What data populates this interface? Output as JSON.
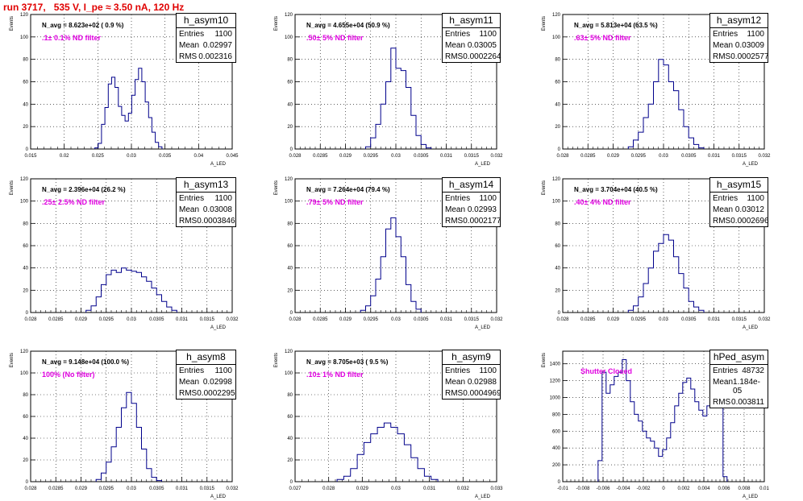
{
  "run_title": "run 3717,   535 V, I_pe ≈ 3.50 nA, 120 Hz",
  "colors": {
    "title": "#e00000",
    "filter_label": "#e000e0",
    "histogram": "#00008b"
  },
  "chart_data": [
    {
      "type": "bar",
      "stats_name": "h_asym10",
      "entries": "1100",
      "mean": "0.02997",
      "rms": "0.002316",
      "n_avg": "N_avg = 8.623e+02 ( 0.9 %)",
      "filter": ".1± 0.1% ND filter",
      "xlabel": "A_LED",
      "ylabel": "Events",
      "xlim": [
        0.015,
        0.045
      ],
      "ylim": [
        0,
        120
      ],
      "xticks": [
        "0.015",
        "0.02",
        "0.025",
        "0.03",
        "0.035",
        "0.04",
        "0.045"
      ],
      "xtick_values": [
        0.015,
        0.02,
        0.025,
        0.03,
        0.035,
        0.04,
        0.045
      ],
      "yticks": [
        0,
        20,
        40,
        60,
        80,
        100,
        120
      ],
      "grid": true,
      "bins": [
        [
          0.0248,
          1
        ],
        [
          0.0253,
          5
        ],
        [
          0.0258,
          22
        ],
        [
          0.0263,
          37
        ],
        [
          0.0268,
          58
        ],
        [
          0.0273,
          64
        ],
        [
          0.0278,
          55
        ],
        [
          0.0283,
          38
        ],
        [
          0.0288,
          30
        ],
        [
          0.0293,
          25
        ],
        [
          0.0298,
          32
        ],
        [
          0.0303,
          48
        ],
        [
          0.0308,
          62
        ],
        [
          0.0313,
          72
        ],
        [
          0.0318,
          60
        ],
        [
          0.0323,
          42
        ],
        [
          0.0328,
          28
        ],
        [
          0.0333,
          15
        ],
        [
          0.0338,
          6
        ],
        [
          0.0343,
          2
        ]
      ]
    },
    {
      "type": "bar",
      "stats_name": "h_asym11",
      "entries": "1100",
      "mean": "0.03005",
      "rms": "0.0002264",
      "n_avg": "N_avg = 4.655e+04 (50.9 %)",
      "filter": ".50± 5% ND filter",
      "xlabel": "A_LED",
      "ylabel": "Events",
      "xlim": [
        0.028,
        0.032
      ],
      "ylim": [
        0,
        120
      ],
      "xticks": [
        "0.028",
        "0.0285",
        "0.029",
        "0.0295",
        "0.03",
        "0.0305",
        "0.031",
        "0.0315",
        "0.032"
      ],
      "xtick_values": [
        0.028,
        0.0285,
        0.029,
        0.0295,
        0.03,
        0.0305,
        0.031,
        0.0315,
        0.032
      ],
      "yticks": [
        0,
        20,
        40,
        60,
        80,
        100,
        120
      ],
      "grid": true,
      "bins": [
        [
          0.02945,
          2
        ],
        [
          0.02955,
          10
        ],
        [
          0.02965,
          22
        ],
        [
          0.02975,
          40
        ],
        [
          0.02985,
          60
        ],
        [
          0.02995,
          90
        ],
        [
          0.03005,
          72
        ],
        [
          0.03015,
          70
        ],
        [
          0.03025,
          55
        ],
        [
          0.03035,
          30
        ],
        [
          0.03045,
          12
        ],
        [
          0.03055,
          4
        ],
        [
          0.03065,
          1
        ]
      ]
    },
    {
      "type": "bar",
      "stats_name": "h_asym12",
      "entries": "1100",
      "mean": "0.03009",
      "rms": "0.0002577",
      "n_avg": "N_avg = 5.813e+04 (63.5 %)",
      "filter": ".63± 5% ND filter",
      "xlabel": "A_LED",
      "ylabel": "Events",
      "xlim": [
        0.028,
        0.032
      ],
      "ylim": [
        0,
        120
      ],
      "xticks": [
        "0.028",
        "0.0285",
        "0.029",
        "0.0295",
        "0.03",
        "0.0305",
        "0.031",
        "0.0315",
        "0.032"
      ],
      "xtick_values": [
        0.028,
        0.0285,
        0.029,
        0.0295,
        0.03,
        0.0305,
        0.031,
        0.0315,
        0.032
      ],
      "yticks": [
        0,
        20,
        40,
        60,
        80,
        100,
        120
      ],
      "grid": true,
      "bins": [
        [
          0.02935,
          2
        ],
        [
          0.02945,
          8
        ],
        [
          0.02955,
          15
        ],
        [
          0.02965,
          28
        ],
        [
          0.02975,
          40
        ],
        [
          0.02985,
          60
        ],
        [
          0.02995,
          80
        ],
        [
          0.03005,
          75
        ],
        [
          0.03015,
          60
        ],
        [
          0.03025,
          52
        ],
        [
          0.03035,
          35
        ],
        [
          0.03045,
          20
        ],
        [
          0.03055,
          10
        ],
        [
          0.03065,
          4
        ],
        [
          0.03075,
          1
        ]
      ]
    },
    {
      "type": "bar",
      "stats_name": "h_asym13",
      "entries": "1100",
      "mean": "0.03008",
      "rms": "0.0003846",
      "n_avg": "N_avg = 2.396e+04 (26.2 %)",
      "filter": ".25± 2.5% ND filter",
      "xlabel": "A_LED",
      "ylabel": "Events",
      "xlim": [
        0.028,
        0.032
      ],
      "ylim": [
        0,
        120
      ],
      "xticks": [
        "0.028",
        "0.0285",
        "0.029",
        "0.0295",
        "0.03",
        "0.0305",
        "0.031",
        "0.0315",
        "0.032"
      ],
      "xtick_values": [
        0.028,
        0.0285,
        0.029,
        0.0295,
        0.03,
        0.0305,
        0.031,
        0.0315,
        0.032
      ],
      "yticks": [
        0,
        20,
        40,
        60,
        80,
        100,
        120
      ],
      "grid": true,
      "bins": [
        [
          0.02915,
          2
        ],
        [
          0.02925,
          6
        ],
        [
          0.02935,
          14
        ],
        [
          0.02945,
          25
        ],
        [
          0.02955,
          34
        ],
        [
          0.02965,
          38
        ],
        [
          0.02975,
          36
        ],
        [
          0.02985,
          40
        ],
        [
          0.02995,
          38
        ],
        [
          0.03005,
          37
        ],
        [
          0.03015,
          36
        ],
        [
          0.03025,
          32
        ],
        [
          0.03035,
          28
        ],
        [
          0.03045,
          22
        ],
        [
          0.03055,
          16
        ],
        [
          0.03065,
          10
        ],
        [
          0.03075,
          5
        ],
        [
          0.03085,
          2
        ]
      ]
    },
    {
      "type": "bar",
      "stats_name": "h_asym14",
      "entries": "1100",
      "mean": "0.02993",
      "rms": "0.0002177",
      "n_avg": "N_avg = 7.264e+04 (79.4 %)",
      "filter": ".79± 5% ND filter",
      "xlabel": "A_LED",
      "ylabel": "Events",
      "xlim": [
        0.028,
        0.032
      ],
      "ylim": [
        0,
        120
      ],
      "xticks": [
        "0.028",
        "0.0285",
        "0.029",
        "0.0295",
        "0.03",
        "0.0305",
        "0.031",
        "0.0315",
        "0.032"
      ],
      "xtick_values": [
        0.028,
        0.0285,
        0.029,
        0.0295,
        0.03,
        0.0305,
        0.031,
        0.0315,
        0.032
      ],
      "yticks": [
        0,
        20,
        40,
        60,
        80,
        100,
        120
      ],
      "grid": true,
      "bins": [
        [
          0.02935,
          2
        ],
        [
          0.02945,
          6
        ],
        [
          0.02955,
          15
        ],
        [
          0.02965,
          30
        ],
        [
          0.02975,
          50
        ],
        [
          0.02985,
          75
        ],
        [
          0.02995,
          85
        ],
        [
          0.03005,
          68
        ],
        [
          0.03015,
          50
        ],
        [
          0.03025,
          25
        ],
        [
          0.03035,
          10
        ],
        [
          0.03045,
          3
        ]
      ]
    },
    {
      "type": "bar",
      "stats_name": "h_asym15",
      "entries": "1100",
      "mean": "0.03012",
      "rms": "0.0002696",
      "n_avg": "N_avg = 3.704e+04 (40.5 %)",
      "filter": ".40± 4% ND filter",
      "xlabel": "A_LED",
      "ylabel": "Events",
      "xlim": [
        0.028,
        0.032
      ],
      "ylim": [
        0,
        120
      ],
      "xticks": [
        "0.028",
        "0.0285",
        "0.029",
        "0.0295",
        "0.03",
        "0.0305",
        "0.031",
        "0.0315",
        "0.032"
      ],
      "xtick_values": [
        0.028,
        0.0285,
        0.029,
        0.0295,
        0.03,
        0.0305,
        0.031,
        0.0315,
        0.032
      ],
      "yticks": [
        0,
        20,
        40,
        60,
        80,
        100,
        120
      ],
      "grid": true,
      "bins": [
        [
          0.02935,
          2
        ],
        [
          0.02945,
          6
        ],
        [
          0.02955,
          14
        ],
        [
          0.02965,
          26
        ],
        [
          0.02975,
          40
        ],
        [
          0.02985,
          55
        ],
        [
          0.02995,
          62
        ],
        [
          0.03005,
          70
        ],
        [
          0.03015,
          65
        ],
        [
          0.03025,
          50
        ],
        [
          0.03035,
          35
        ],
        [
          0.03045,
          22
        ],
        [
          0.03055,
          10
        ],
        [
          0.03065,
          5
        ],
        [
          0.03075,
          2
        ]
      ]
    },
    {
      "type": "bar",
      "stats_name": "h_asym8",
      "entries": "1100",
      "mean": "0.02998",
      "rms": "0.0002295",
      "n_avg": "N_avg = 9.148e+04 (100.0 %)",
      "filter": "100% (No filter)",
      "xlabel": "A_LED",
      "ylabel": "Events",
      "xlim": [
        0.028,
        0.032
      ],
      "ylim": [
        0,
        120
      ],
      "xticks": [
        "0.028",
        "0.0285",
        "0.029",
        "0.0295",
        "0.03",
        "0.0305",
        "0.031",
        "0.0315",
        "0.032"
      ],
      "xtick_values": [
        0.028,
        0.0285,
        0.029,
        0.0295,
        0.03,
        0.0305,
        0.031,
        0.0315,
        0.032
      ],
      "yticks": [
        0,
        20,
        40,
        60,
        80,
        100,
        120
      ],
      "grid": true,
      "bins": [
        [
          0.02935,
          2
        ],
        [
          0.02945,
          8
        ],
        [
          0.02955,
          18
        ],
        [
          0.02965,
          32
        ],
        [
          0.02975,
          50
        ],
        [
          0.02985,
          68
        ],
        [
          0.02995,
          82
        ],
        [
          0.03005,
          72
        ],
        [
          0.03015,
          50
        ],
        [
          0.03025,
          30
        ],
        [
          0.03035,
          12
        ],
        [
          0.03045,
          4
        ],
        [
          0.03055,
          1
        ]
      ]
    },
    {
      "type": "bar",
      "stats_name": "h_asym9",
      "entries": "1100",
      "mean": "0.02988",
      "rms": "0.0004969",
      "n_avg": "N_avg = 8.705e+03 ( 9.5 %)",
      "filter": ".10± 1% ND filter",
      "xlabel": "A_LED",
      "ylabel": "Events",
      "xlim": [
        0.027,
        0.033
      ],
      "ylim": [
        0,
        120
      ],
      "xticks": [
        "0.027",
        "0.028",
        "0.029",
        "0.03",
        "0.031",
        "0.032",
        "0.033"
      ],
      "xtick_values": [
        0.027,
        0.028,
        0.029,
        0.03,
        0.031,
        0.032,
        0.033
      ],
      "yticks": [
        0,
        20,
        40,
        60,
        80,
        100,
        120
      ],
      "grid": true,
      "bins": [
        [
          0.02835,
          2
        ],
        [
          0.02855,
          5
        ],
        [
          0.02875,
          12
        ],
        [
          0.02895,
          25
        ],
        [
          0.02915,
          36
        ],
        [
          0.02935,
          44
        ],
        [
          0.02955,
          50
        ],
        [
          0.02975,
          54
        ],
        [
          0.02995,
          50
        ],
        [
          0.03015,
          44
        ],
        [
          0.03035,
          34
        ],
        [
          0.03055,
          22
        ],
        [
          0.03075,
          12
        ],
        [
          0.03095,
          5
        ],
        [
          0.03115,
          2
        ]
      ]
    },
    {
      "type": "bar",
      "stats_name": "hPed_asym",
      "entries": "48732",
      "mean": "1.184e-05",
      "rms": "0.003811",
      "n_avg": "",
      "filter": "Shutter Closed",
      "xlabel": "A_LED",
      "ylabel": "Events",
      "xlim": [
        -0.01,
        0.01
      ],
      "ylim": [
        0,
        1550
      ],
      "xticks": [
        "-0.01",
        "-0.008",
        "-0.006",
        "-0.004",
        "-0.002",
        "0",
        "0.002",
        "0.004",
        "0.006",
        "0.008",
        "0.01"
      ],
      "xtick_values": [
        -0.01,
        -0.008,
        -0.006,
        -0.004,
        -0.002,
        0,
        0.002,
        0.004,
        0.006,
        0.008,
        0.01
      ],
      "yticks": [
        0,
        200,
        400,
        600,
        800,
        1000,
        1200,
        1400
      ],
      "grid": true,
      "bins": [
        [
          -0.0063,
          250
        ],
        [
          -0.0059,
          1300
        ],
        [
          -0.0055,
          1050
        ],
        [
          -0.0051,
          1150
        ],
        [
          -0.0047,
          1250
        ],
        [
          -0.0043,
          1300
        ],
        [
          -0.0039,
          1450
        ],
        [
          -0.0035,
          1200
        ],
        [
          -0.0031,
          950
        ],
        [
          -0.0027,
          800
        ],
        [
          -0.0023,
          720
        ],
        [
          -0.0019,
          600
        ],
        [
          -0.0015,
          520
        ],
        [
          -0.0011,
          480
        ],
        [
          -0.0007,
          400
        ],
        [
          -0.0003,
          300
        ],
        [
          0.0001,
          380
        ],
        [
          0.0005,
          520
        ],
        [
          0.0009,
          700
        ],
        [
          0.0013,
          900
        ],
        [
          0.0017,
          1050
        ],
        [
          0.0021,
          1180
        ],
        [
          0.0025,
          1230
        ],
        [
          0.0029,
          1100
        ],
        [
          0.0033,
          950
        ],
        [
          0.0037,
          850
        ],
        [
          0.0041,
          780
        ],
        [
          0.0045,
          900
        ],
        [
          0.0049,
          1100
        ],
        [
          0.0053,
          1200
        ],
        [
          0.0057,
          900
        ],
        [
          0.0061,
          60
        ]
      ]
    }
  ]
}
